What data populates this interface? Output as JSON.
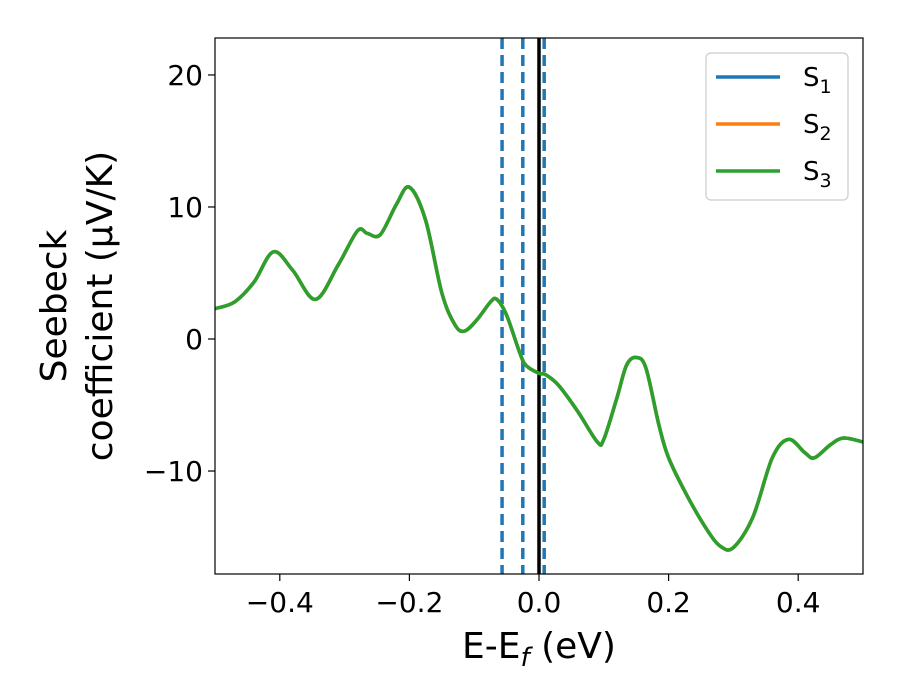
{
  "chart_data": {
    "type": "line",
    "xlabel": "E-E",
    "xlabel_sub": "f",
    "xlabel_unit": "(eV)",
    "ylabel_line1": "Seebeck",
    "ylabel_line2": "coefficient (μV/K)",
    "xlim": [
      -0.5,
      0.5
    ],
    "ylim": [
      -17.8,
      22.8
    ],
    "xticks": [
      -0.4,
      -0.2,
      0.0,
      0.2,
      0.4
    ],
    "xtick_labels": [
      "−0.4",
      "−0.2",
      "0.0",
      "0.2",
      "0.4"
    ],
    "yticks": [
      -10,
      0,
      10,
      20
    ],
    "ytick_labels": [
      "−10",
      "0",
      "10",
      "20"
    ],
    "grid": false,
    "legend_position": "top-right",
    "series": [
      {
        "name": "S",
        "name_sub": "1",
        "color": "#1f77b4",
        "x": [
          -0.5,
          -0.47,
          -0.44,
          -0.41,
          -0.38,
          -0.345,
          -0.31,
          -0.28,
          -0.265,
          -0.245,
          -0.22,
          -0.2,
          -0.175,
          -0.15,
          -0.13,
          -0.115,
          -0.095,
          -0.075,
          -0.065,
          -0.05,
          -0.03,
          -0.02,
          0.0,
          0.01,
          0.03,
          0.06,
          0.09,
          0.1,
          0.12,
          0.135,
          0.15,
          0.165,
          0.185,
          0.2,
          0.23,
          0.26,
          0.28,
          0.3,
          0.33,
          0.36,
          0.385,
          0.41,
          0.425,
          0.45,
          0.47,
          0.5
        ],
        "y": [
          2.3,
          2.8,
          4.3,
          6.6,
          5.2,
          3.0,
          5.6,
          8.2,
          8.0,
          7.9,
          10.2,
          11.5,
          9.0,
          3.5,
          1.1,
          0.6,
          1.5,
          2.8,
          3.0,
          1.8,
          -1.0,
          -2.0,
          -2.6,
          -2.7,
          -3.5,
          -5.5,
          -7.8,
          -7.6,
          -4.5,
          -2.0,
          -1.4,
          -2.2,
          -6.5,
          -9.0,
          -12.0,
          -14.5,
          -15.7,
          -15.8,
          -13.5,
          -9.0,
          -7.6,
          -8.6,
          -9.0,
          -8.0,
          -7.5,
          -7.8
        ]
      },
      {
        "name": "S",
        "name_sub": "2",
        "color": "#ff7f0e",
        "x": [
          -0.5,
          -0.47,
          -0.44,
          -0.41,
          -0.38,
          -0.345,
          -0.31,
          -0.28,
          -0.265,
          -0.245,
          -0.22,
          -0.2,
          -0.175,
          -0.15,
          -0.13,
          -0.115,
          -0.095,
          -0.075,
          -0.065,
          -0.05,
          -0.03,
          -0.02,
          0.0,
          0.01,
          0.03,
          0.06,
          0.09,
          0.1,
          0.12,
          0.135,
          0.15,
          0.165,
          0.185,
          0.2,
          0.23,
          0.26,
          0.28,
          0.3,
          0.33,
          0.36,
          0.385,
          0.41,
          0.425,
          0.45,
          0.47,
          0.5
        ],
        "y": [
          2.3,
          2.8,
          4.3,
          6.6,
          5.2,
          3.0,
          5.6,
          8.2,
          8.0,
          7.9,
          10.2,
          11.5,
          9.0,
          3.5,
          1.1,
          0.6,
          1.5,
          2.8,
          3.0,
          1.8,
          -1.0,
          -2.0,
          -2.6,
          -2.7,
          -3.5,
          -5.5,
          -7.8,
          -7.6,
          -4.5,
          -2.0,
          -1.4,
          -2.2,
          -6.5,
          -9.0,
          -12.0,
          -14.5,
          -15.7,
          -15.8,
          -13.5,
          -9.0,
          -7.6,
          -8.6,
          -9.0,
          -8.0,
          -7.5,
          -7.8
        ]
      },
      {
        "name": "S",
        "name_sub": "3",
        "color": "#2ca02c",
        "x": [
          -0.5,
          -0.47,
          -0.44,
          -0.41,
          -0.38,
          -0.345,
          -0.31,
          -0.28,
          -0.265,
          -0.245,
          -0.22,
          -0.2,
          -0.175,
          -0.15,
          -0.13,
          -0.115,
          -0.095,
          -0.075,
          -0.065,
          -0.05,
          -0.03,
          -0.02,
          0.0,
          0.01,
          0.03,
          0.06,
          0.09,
          0.1,
          0.12,
          0.135,
          0.15,
          0.165,
          0.185,
          0.2,
          0.23,
          0.26,
          0.28,
          0.3,
          0.33,
          0.36,
          0.385,
          0.41,
          0.425,
          0.45,
          0.47,
          0.5
        ],
        "y": [
          2.3,
          2.8,
          4.3,
          6.6,
          5.2,
          3.0,
          5.6,
          8.2,
          8.0,
          7.9,
          10.2,
          11.5,
          9.0,
          3.5,
          1.1,
          0.6,
          1.5,
          2.8,
          3.0,
          1.8,
          -1.0,
          -2.0,
          -2.6,
          -2.7,
          -3.5,
          -5.5,
          -7.8,
          -7.6,
          -4.5,
          -2.0,
          -1.4,
          -2.2,
          -6.5,
          -9.0,
          -12.0,
          -14.5,
          -15.7,
          -15.8,
          -13.5,
          -9.0,
          -7.6,
          -8.6,
          -9.0,
          -8.0,
          -7.5,
          -7.8
        ]
      }
    ],
    "vertical_lines": [
      {
        "x": -0.057,
        "style": "dashed",
        "color": "#1f77b4"
      },
      {
        "x": -0.025,
        "style": "dashed",
        "color": "#1f77b4"
      },
      {
        "x": 0.0,
        "style": "solid",
        "color": "#000000"
      },
      {
        "x": 0.008,
        "style": "dashed",
        "color": "#1f77b4"
      }
    ]
  }
}
